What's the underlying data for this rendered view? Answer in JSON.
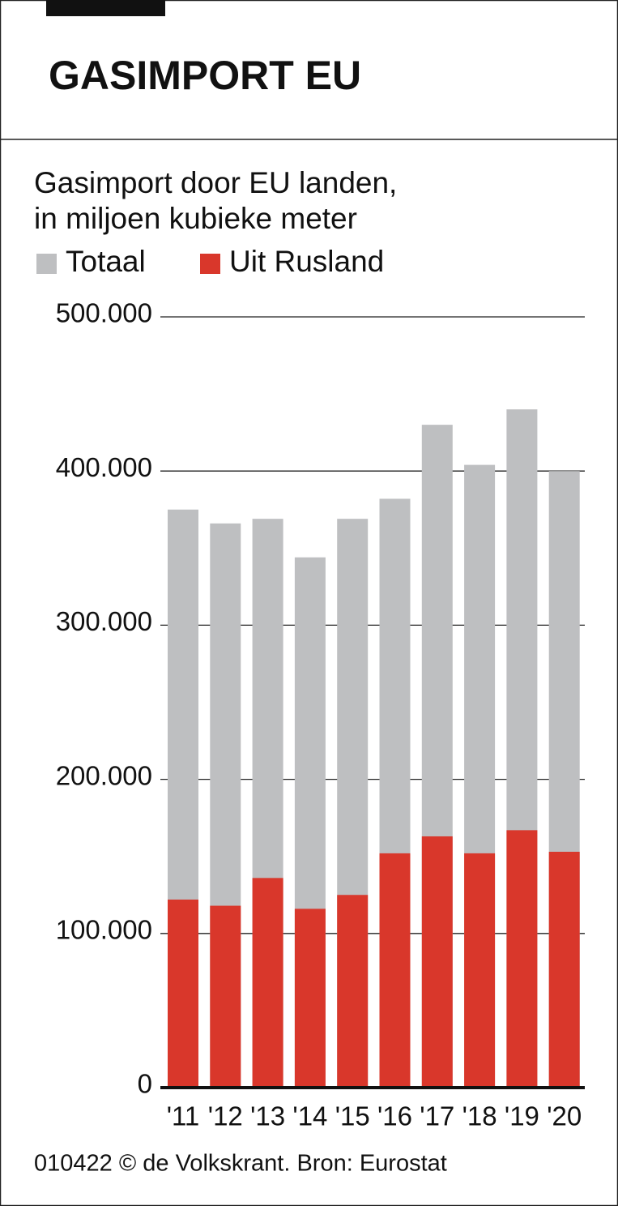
{
  "chart_data": {
    "type": "bar",
    "title": "GASIMPORT EU",
    "subtitle": [
      "Gasimport door EU landen,",
      "in miljoen kubieke meter"
    ],
    "categories": [
      "'11",
      "'12",
      "'13",
      "'14",
      "'15",
      "'16",
      "'17",
      "'18",
      "'19",
      "'20"
    ],
    "series": [
      {
        "name": "Totaal",
        "color": "#bebfc1",
        "values": [
          375000,
          366000,
          369000,
          344000,
          369000,
          382000,
          430000,
          404000,
          440000,
          400000
        ]
      },
      {
        "name": "Uit Rusland",
        "color": "#d9372b",
        "values": [
          122000,
          118000,
          136000,
          116000,
          125000,
          152000,
          163000,
          152000,
          167000,
          153000
        ]
      }
    ],
    "ylim": [
      0,
      500000
    ],
    "yticks": [
      0,
      {
        "value": 100000,
        "label": "100.000"
      },
      {
        "value": 200000,
        "label": "200.000"
      },
      {
        "value": 300000,
        "label": "300.000"
      },
      {
        "value": 400000,
        "label": "400.000"
      },
      {
        "value": 500000,
        "label": "500.000"
      }
    ],
    "grid": true,
    "footer": "010422 © de Volkskrant. Bron: Eurostat"
  }
}
